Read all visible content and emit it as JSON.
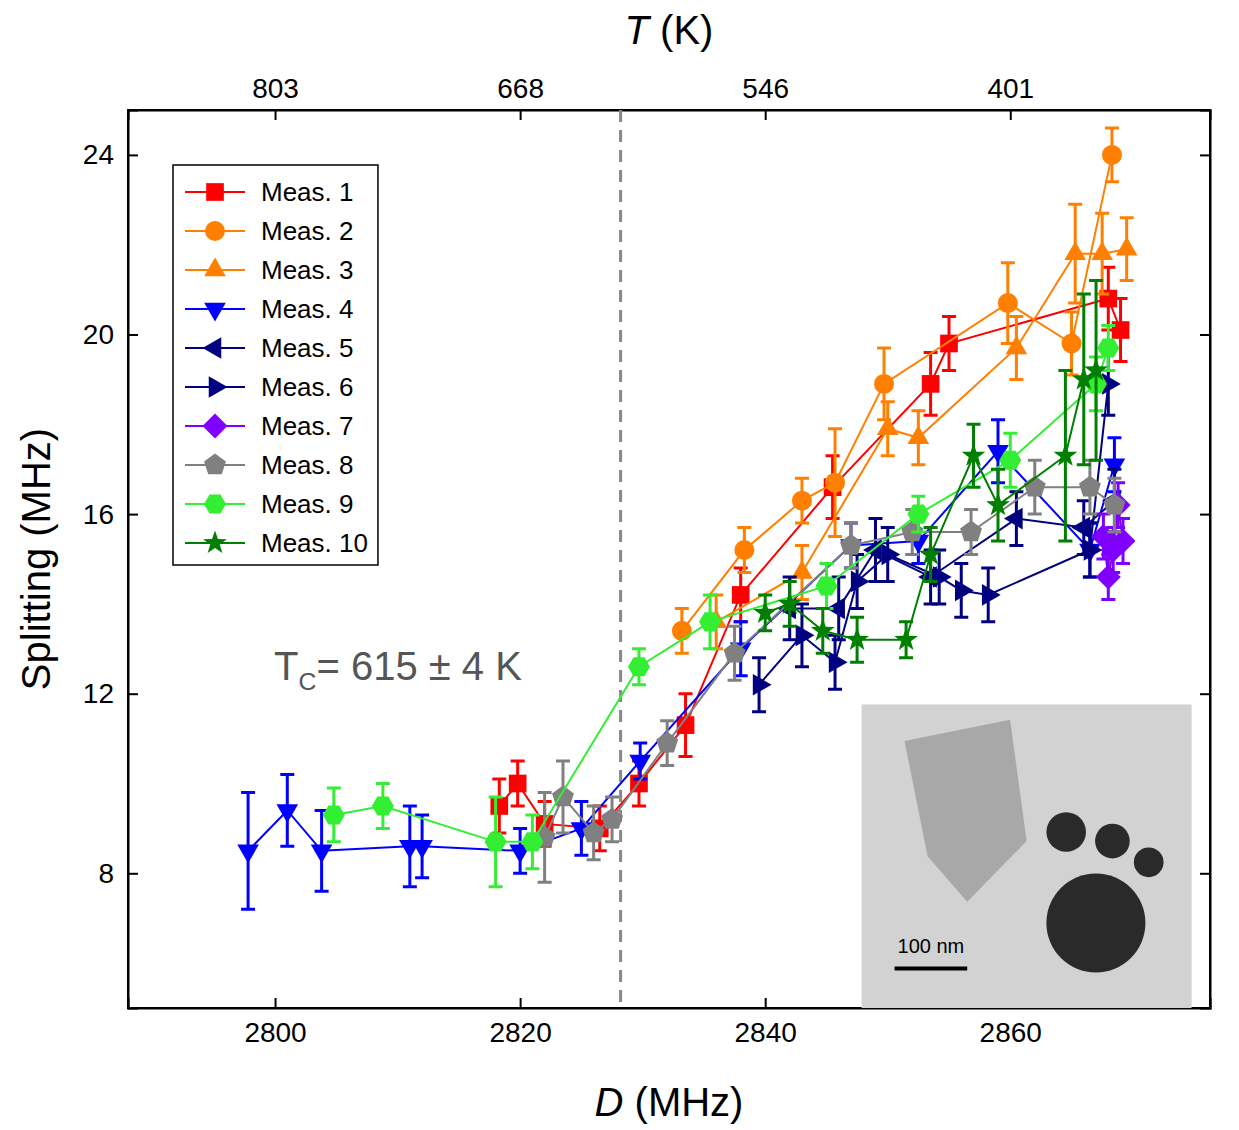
{
  "chart_data": {
    "type": "scatter",
    "x_label": "D (MHz)",
    "y_label": "Splitting (MHz)",
    "xlim": [
      2788,
      2876.3
    ],
    "ylim": [
      5,
      25
    ],
    "xticks": [
      2800,
      2820,
      2840,
      2860
    ],
    "yticks": [
      8,
      12,
      16,
      20,
      24
    ],
    "top_axis": {
      "label": "T (K)",
      "ticks": [
        {
          "value": 2800,
          "label": "803"
        },
        {
          "value": 2820,
          "label": "668"
        },
        {
          "value": 2840,
          "label": "546"
        },
        {
          "value": 2860,
          "label": "401"
        }
      ]
    },
    "grid": false,
    "legend": "upper left",
    "annotation": {
      "text": "TC= 615 ± 4 K",
      "x": 2828.2
    },
    "inset": {
      "scale_bar": "100 nm"
    },
    "series": [
      {
        "name": "Meas. 1",
        "color": "#ff0000",
        "marker": "square",
        "line_style": "solid",
        "x": [
          2818.3,
          2819.8,
          2822,
          2826.5,
          2829.7,
          2833.5,
          2838,
          2845.5,
          2853.5,
          2855,
          2868,
          2869
        ],
        "values": [
          9.5,
          10.0,
          9.1,
          9.0,
          10.0,
          11.3,
          14.2,
          16.6,
          18.9,
          19.8,
          20.8,
          20.1
        ],
        "errors": [
          0.6,
          0.5,
          0.5,
          0.5,
          0.5,
          0.7,
          0.6,
          0.7,
          0.7,
          0.6,
          0.7,
          0.7
        ]
      },
      {
        "name": "Meas. 2",
        "color": "#ff8000",
        "marker": "circle",
        "line_style": "solid",
        "x": [
          2833.2,
          2838.3,
          2843,
          2845.7,
          2849.7,
          2859.8,
          2865,
          2868.3
        ],
        "values": [
          13.4,
          15.2,
          16.3,
          16.7,
          18.9,
          20.7,
          19.8,
          24.0
        ],
        "errors": [
          0.5,
          0.5,
          0.5,
          1.2,
          0.8,
          0.9,
          0.7,
          0.6
        ]
      },
      {
        "name": "Meas. 3",
        "color": "#ff8000",
        "marker": "triangle-up",
        "line_style": "solid",
        "x": [
          2836,
          2843,
          2850,
          2852.5,
          2860.5,
          2865.3,
          2867.5,
          2869.5
        ],
        "values": [
          13.6,
          14.7,
          17.9,
          17.7,
          19.7,
          21.8,
          21.8,
          21.9
        ],
        "errors": [
          0.6,
          0.6,
          0.6,
          0.6,
          0.7,
          1.1,
          0.9,
          0.7
        ]
      },
      {
        "name": "Meas. 4",
        "color": "#0000ff",
        "marker": "triangle-down",
        "line_style": "solid",
        "x": [
          2797.8,
          2801,
          2803.8,
          2811,
          2812,
          2820,
          2825,
          2829.8,
          2838,
          2847,
          2852.5,
          2859,
          2866.5,
          2868.5
        ],
        "values": [
          8.5,
          9.4,
          8.5,
          8.6,
          8.6,
          8.5,
          9.0,
          10.5,
          13.0,
          15.3,
          15.4,
          17.4,
          15.2,
          17.1
        ],
        "errors": [
          1.3,
          0.8,
          0.9,
          0.9,
          0.7,
          0.5,
          0.6,
          0.4,
          0.6,
          0.5,
          0.5,
          0.7,
          0.6,
          0.6
        ]
      },
      {
        "name": "Meas. 5",
        "color": "#000080",
        "marker": "triangle-left",
        "line_style": "solid",
        "x": [
          2842,
          2846,
          2849,
          2853.5,
          2860.5,
          2866,
          2868.5
        ],
        "values": [
          13.9,
          13.9,
          15.2,
          14.6,
          15.9,
          15.7,
          16.3
        ],
        "errors": [
          0.7,
          0.7,
          0.7,
          0.6,
          0.6,
          0.6,
          0.7
        ]
      },
      {
        "name": "Meas. 6",
        "color": "#000080",
        "marker": "triangle-right",
        "line_style": "solid",
        "x": [
          2839.5,
          2843,
          2845.7,
          2847.5,
          2850,
          2854.2,
          2856,
          2858.2,
          2866.5,
          2868
        ],
        "values": [
          12.2,
          13.3,
          12.7,
          14.5,
          15.1,
          14.6,
          14.3,
          14.2,
          15.2,
          18.9
        ],
        "errors": [
          0.6,
          0.7,
          0.6,
          0.6,
          0.6,
          0.6,
          0.6,
          0.6,
          0.6,
          0.7
        ]
      },
      {
        "name": "Meas. 7",
        "color": "#8000ff",
        "marker": "diamond",
        "line_style": "solid",
        "x": [
          2867.6,
          2868,
          2868.4,
          2868.8,
          2869.2
        ],
        "values": [
          15.5,
          14.6,
          15.2,
          16.2,
          15.4
        ],
        "errors": [
          0.5,
          0.5,
          0.5,
          0.5,
          0.5
        ]
      },
      {
        "name": "Meas. 8",
        "color": "#808080",
        "marker": "pentagon",
        "line_style": "solid",
        "x": [
          2822,
          2823.5,
          2826,
          2827.5,
          2832,
          2837.5,
          2847,
          2852,
          2856.8,
          2862,
          2866.5,
          2868.5
        ],
        "values": [
          8.8,
          9.7,
          8.9,
          9.2,
          10.9,
          12.9,
          15.3,
          15.6,
          15.6,
          16.6,
          16.6,
          16.2
        ],
        "errors": [
          1.0,
          0.8,
          0.6,
          0.5,
          0.5,
          0.6,
          0.5,
          0.5,
          0.5,
          0.6,
          0.6,
          0.6
        ]
      },
      {
        "name": "Meas. 9",
        "color": "#33ee33",
        "marker": "hexagon",
        "line_style": "solid",
        "x": [
          2804.8,
          2808.8,
          2818,
          2821,
          2829.7,
          2835.5,
          2845,
          2852.5,
          2860,
          2867,
          2868
        ],
        "values": [
          9.3,
          9.5,
          8.7,
          8.7,
          12.6,
          13.6,
          14.4,
          16.0,
          17.2,
          18.9,
          19.7
        ],
        "errors": [
          0.6,
          0.5,
          1.0,
          0.6,
          0.4,
          0.6,
          0.5,
          0.4,
          0.6,
          0.6,
          0.5
        ]
      },
      {
        "name": "Meas. 10",
        "color": "#007f00",
        "marker": "star",
        "line_style": "solid",
        "x": [
          2840,
          2842,
          2844.7,
          2847.5,
          2851.5,
          2853.5,
          2857,
          2859,
          2864.5,
          2866,
          2867
        ],
        "values": [
          13.8,
          14.0,
          13.4,
          13.2,
          13.2,
          15.1,
          17.3,
          16.2,
          17.3,
          19.0,
          19.2
        ],
        "errors": [
          0.4,
          0.5,
          0.5,
          0.5,
          0.4,
          0.6,
          0.7,
          0.8,
          1.9,
          1.9,
          2.0
        ]
      }
    ]
  }
}
